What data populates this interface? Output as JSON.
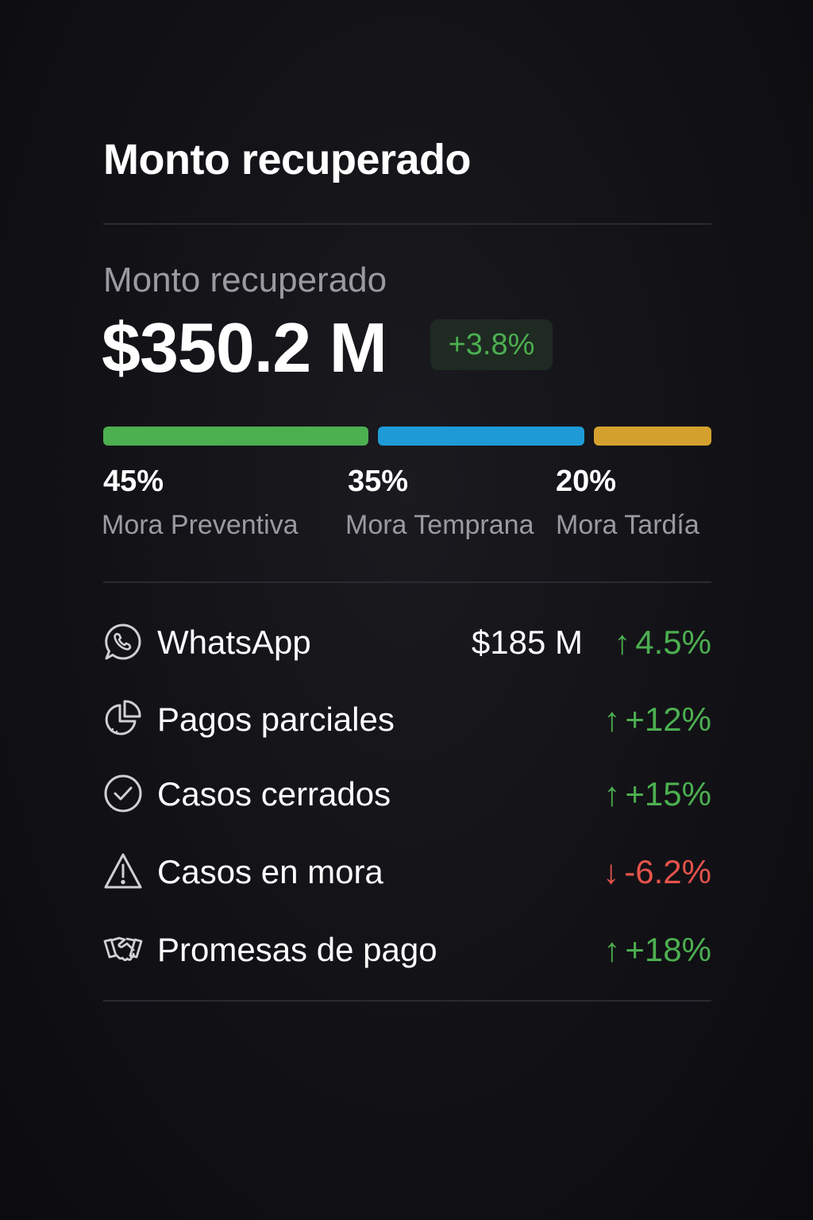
{
  "header": {
    "title": "Monto recuperado"
  },
  "metric": {
    "label": "Monto recuperado",
    "value": "$350.2 M",
    "change": "+3.8%",
    "change_color": "#4caf50"
  },
  "segments": [
    {
      "percent": "45%",
      "share": 45,
      "name": "Mora Preventiva",
      "color": "#4caf50"
    },
    {
      "percent": "35%",
      "share": 35,
      "name": "Mora Temprana",
      "color": "#1e9bd7"
    },
    {
      "percent": "20%",
      "share": 20,
      "name": "Mora Tardía",
      "color": "#d4a12e"
    }
  ],
  "rows": [
    {
      "icon": "whatsapp-icon",
      "label": "WhatsApp",
      "value": "$185 M",
      "arrow": "↑",
      "change": "4.5%",
      "trend": "up"
    },
    {
      "icon": "pie-chart-icon",
      "label": "Pagos parciales",
      "value": "",
      "arrow": "↑",
      "change": "+12%",
      "trend": "up"
    },
    {
      "icon": "check-circle-icon",
      "label": "Casos cerrados",
      "value": "",
      "arrow": "↑",
      "change": "+15%",
      "trend": "up"
    },
    {
      "icon": "warning-icon",
      "label": "Casos en mora",
      "value": "",
      "arrow": "↓",
      "change": "-6.2%",
      "trend": "down"
    },
    {
      "icon": "handshake-icon",
      "label": "Promesas de pago",
      "value": "",
      "arrow": "↑",
      "change": "+18%",
      "trend": "up"
    }
  ],
  "colors": {
    "up": "#4caf50",
    "down": "#e5534b",
    "muted_text": "#9a9aa2",
    "divider": "#2a2a30"
  }
}
